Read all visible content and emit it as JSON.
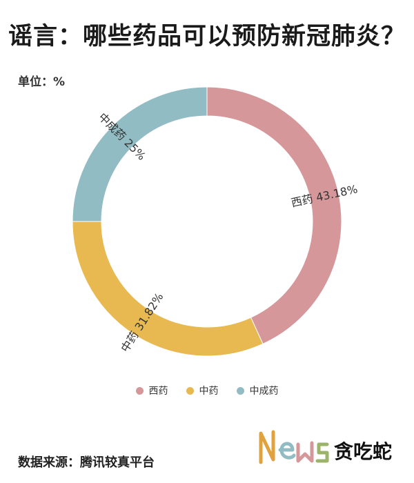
{
  "header": {
    "title": "谣言：哪些药品可以预防新冠肺炎？",
    "unit": "单位：%"
  },
  "chart_data": {
    "type": "pie",
    "variant": "donut",
    "categories": [
      "西药",
      "中药",
      "中成药"
    ],
    "values": [
      43.18,
      31.82,
      25
    ],
    "slice_labels": [
      "西药 43.18%",
      "中药 31.82%",
      "中成药 25%"
    ],
    "colors": [
      "#d6979a",
      "#e8b951",
      "#91bcc4"
    ],
    "legend": {
      "placement": "bottom",
      "items": [
        "西药",
        "中药",
        "中成药"
      ]
    }
  },
  "footer": {
    "source": "数据来源：腾讯较真平台"
  },
  "logo": {
    "text": "News贪吃蛇"
  }
}
